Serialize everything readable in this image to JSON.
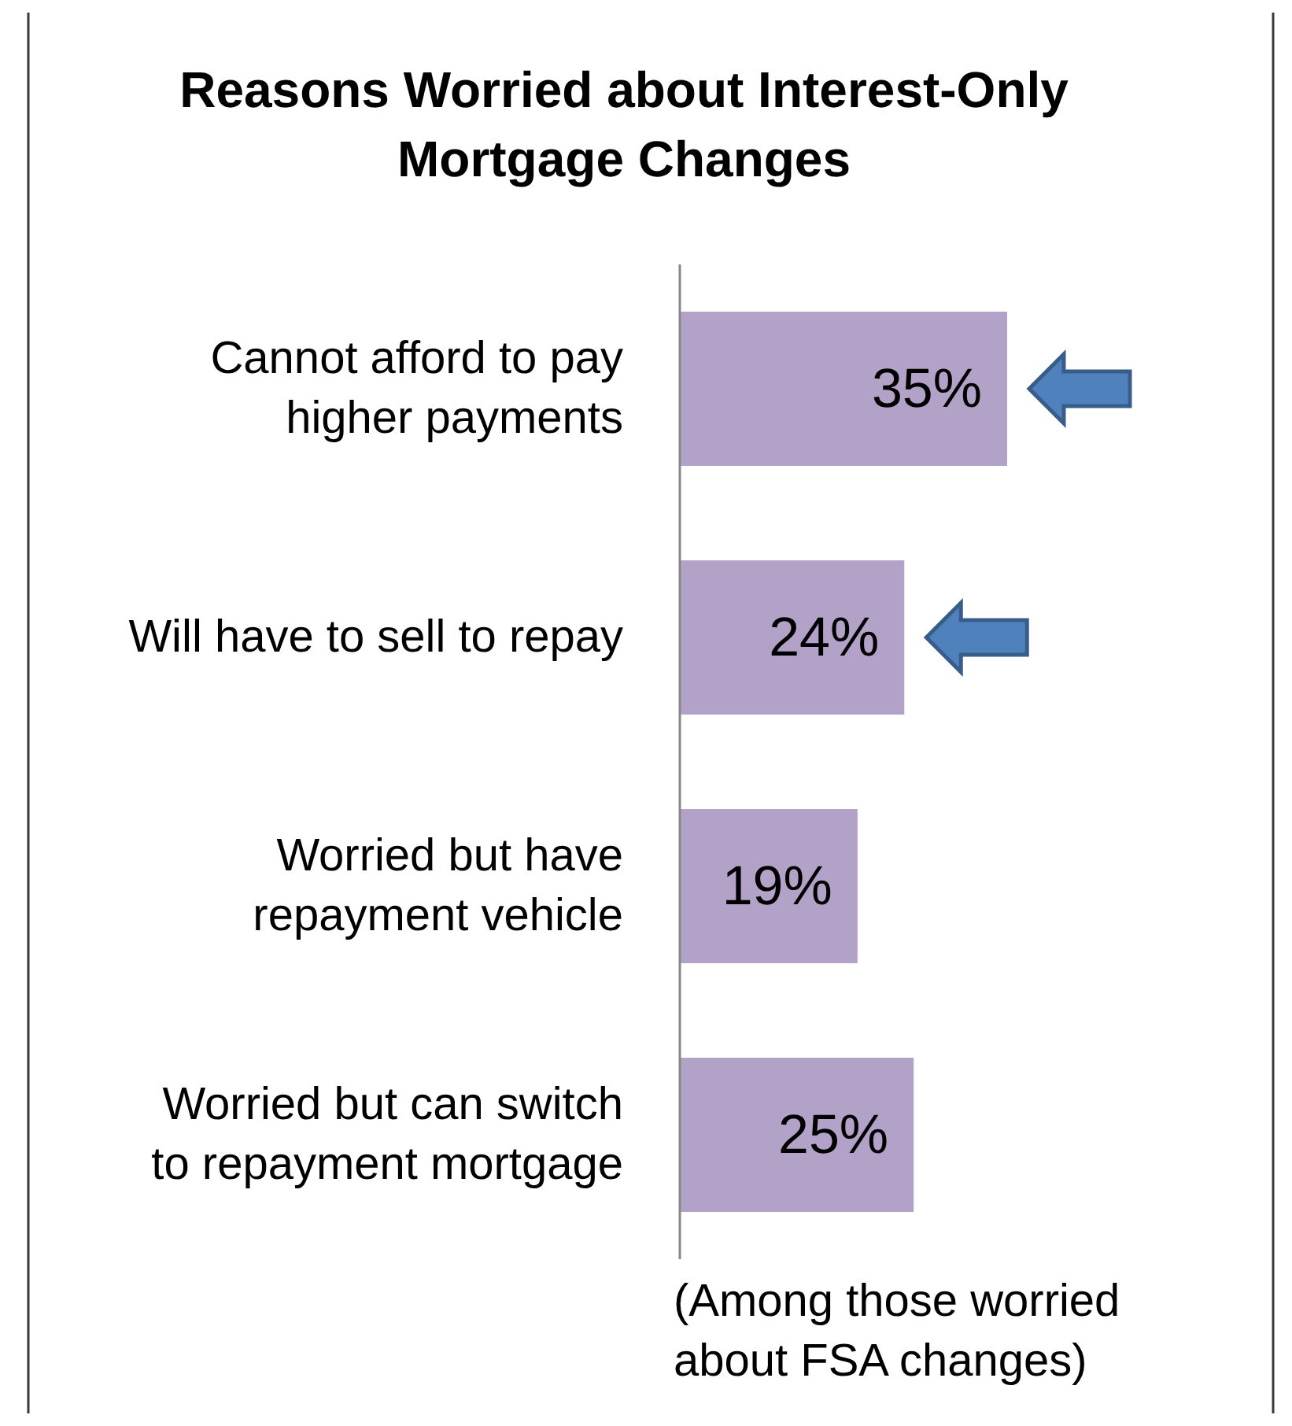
{
  "chart_data": {
    "type": "bar",
    "orientation": "horizontal",
    "title": "Reasons Worried about Interest-Only  Mortgage Changes",
    "categories": [
      "Cannot afford to pay higher payments",
      "Will have to sell to repay",
      "Worried but have repayment vehicle",
      "Worried but can switch to repayment mortgage"
    ],
    "values": [
      35,
      24,
      19,
      25
    ],
    "value_labels": [
      "35%",
      "24%",
      "19%",
      "25%"
    ],
    "color": "#b3a2c7",
    "annotations": [
      "(Among those worried about FSA changes)"
    ]
  }
}
